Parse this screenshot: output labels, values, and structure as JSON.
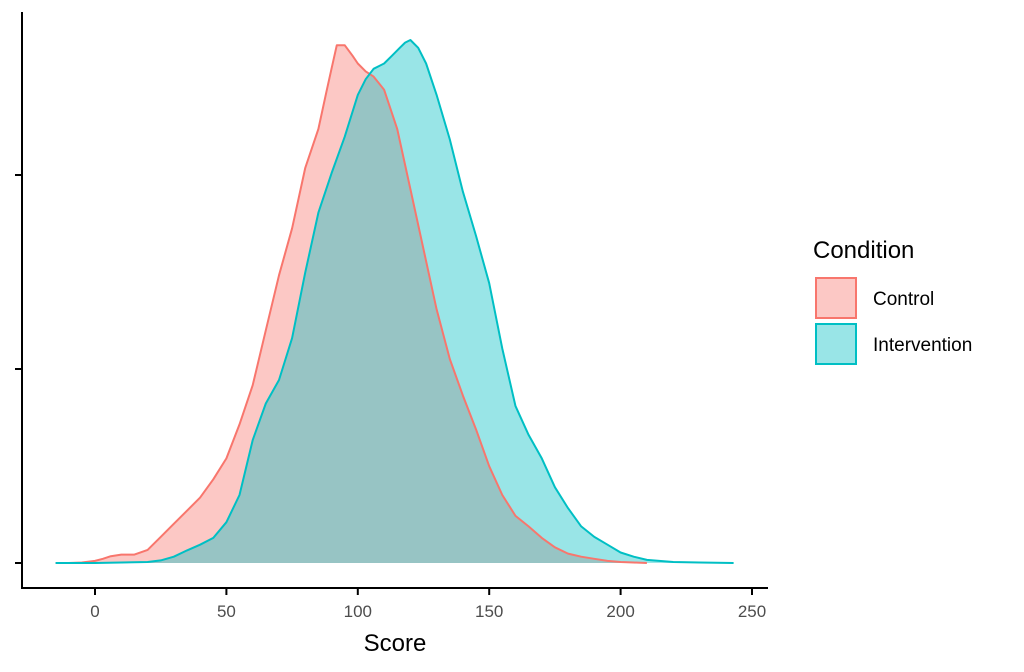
{
  "chart_data": {
    "type": "area",
    "subtype": "density",
    "title": "",
    "xlabel": "Score",
    "ylabel": "",
    "xlim": [
      -15,
      244
    ],
    "ylim": [
      0,
      1
    ],
    "x_ticks": [
      0,
      50,
      100,
      150,
      200,
      250
    ],
    "y_ticks_labeled": false,
    "grid": false,
    "legend": {
      "title": "Condition",
      "position": "right"
    },
    "series": [
      {
        "name": "Control",
        "color": "#F8766D",
        "fill": "#F8766D",
        "fill_opacity": 0.4,
        "x": [
          -15,
          -10,
          -5,
          0,
          3,
          6,
          10,
          15,
          20,
          25,
          30,
          35,
          40,
          45,
          50,
          55,
          60,
          65,
          70,
          75,
          80,
          85,
          88,
          90,
          92,
          95,
          98,
          100,
          103,
          106,
          110,
          115,
          120,
          125,
          130,
          135,
          140,
          145,
          150,
          155,
          160,
          165,
          170,
          175,
          180,
          185,
          190,
          195,
          200,
          205,
          210
        ],
        "y": [
          0.0,
          0.0,
          0.001,
          0.004,
          0.008,
          0.013,
          0.016,
          0.016,
          0.025,
          0.05,
          0.075,
          0.1,
          0.125,
          0.16,
          0.2,
          0.265,
          0.34,
          0.445,
          0.55,
          0.64,
          0.755,
          0.83,
          0.9,
          0.945,
          0.99,
          0.99,
          0.97,
          0.955,
          0.94,
          0.93,
          0.905,
          0.83,
          0.715,
          0.6,
          0.485,
          0.39,
          0.32,
          0.255,
          0.185,
          0.13,
          0.09,
          0.07,
          0.048,
          0.03,
          0.018,
          0.012,
          0.008,
          0.004,
          0.002,
          0.001,
          0.0
        ]
      },
      {
        "name": "Intervention",
        "color": "#00BFC4",
        "fill": "#00BFC4",
        "fill_opacity": 0.4,
        "x": [
          -15,
          0,
          10,
          20,
          25,
          30,
          35,
          40,
          45,
          50,
          55,
          60,
          65,
          70,
          75,
          80,
          85,
          90,
          95,
          100,
          103,
          106,
          110,
          113,
          116,
          118,
          120,
          123,
          126,
          130,
          135,
          140,
          145,
          150,
          155,
          160,
          165,
          170,
          175,
          180,
          185,
          190,
          195,
          200,
          205,
          210,
          220,
          230,
          243
        ],
        "y": [
          0.0,
          0.0,
          0.001,
          0.002,
          0.005,
          0.012,
          0.024,
          0.035,
          0.048,
          0.078,
          0.13,
          0.235,
          0.305,
          0.35,
          0.43,
          0.555,
          0.67,
          0.745,
          0.815,
          0.895,
          0.925,
          0.945,
          0.955,
          0.97,
          0.985,
          0.995,
          1.0,
          0.985,
          0.955,
          0.895,
          0.81,
          0.71,
          0.625,
          0.535,
          0.41,
          0.3,
          0.245,
          0.2,
          0.145,
          0.105,
          0.07,
          0.05,
          0.035,
          0.02,
          0.012,
          0.006,
          0.002,
          0.001,
          0.0
        ]
      }
    ]
  }
}
